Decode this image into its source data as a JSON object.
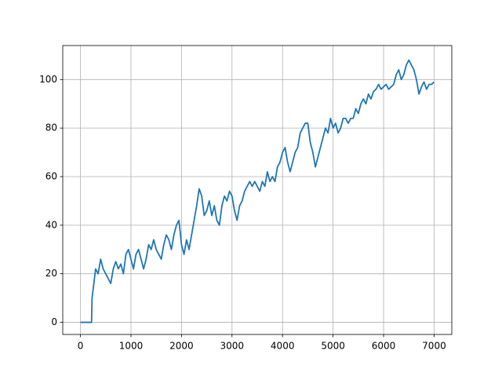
{
  "chart_data": {
    "type": "line",
    "x": [
      0,
      100,
      200,
      220,
      230,
      260,
      300,
      350,
      400,
      450,
      500,
      550,
      600,
      650,
      700,
      750,
      800,
      850,
      900,
      950,
      1000,
      1050,
      1100,
      1150,
      1200,
      1250,
      1300,
      1350,
      1400,
      1450,
      1500,
      1550,
      1600,
      1650,
      1700,
      1750,
      1800,
      1850,
      1900,
      1950,
      2000,
      2050,
      2100,
      2150,
      2200,
      2250,
      2300,
      2350,
      2400,
      2450,
      2500,
      2550,
      2600,
      2650,
      2700,
      2750,
      2800,
      2850,
      2900,
      2950,
      3000,
      3050,
      3100,
      3150,
      3200,
      3250,
      3300,
      3350,
      3400,
      3450,
      3500,
      3550,
      3600,
      3650,
      3700,
      3750,
      3800,
      3850,
      3900,
      3950,
      4000,
      4050,
      4100,
      4150,
      4200,
      4250,
      4300,
      4350,
      4400,
      4450,
      4500,
      4550,
      4600,
      4650,
      4700,
      4750,
      4800,
      4850,
      4900,
      4950,
      5000,
      5050,
      5100,
      5150,
      5200,
      5250,
      5300,
      5350,
      5400,
      5450,
      5500,
      5550,
      5600,
      5650,
      5700,
      5750,
      5800,
      5850,
      5900,
      5950,
      6000,
      6050,
      6100,
      6150,
      6200,
      6250,
      6300,
      6350,
      6400,
      6450,
      6500,
      6550,
      6600,
      6650,
      6700,
      6750,
      6800,
      6850,
      6900,
      6950,
      6999
    ],
    "series": [
      {
        "color": "#1f77b4",
        "values": [
          0,
          0,
          0,
          0,
          10,
          15,
          22,
          20,
          26,
          22,
          20,
          18,
          16,
          22,
          25,
          22,
          24,
          20,
          28,
          30,
          26,
          22,
          28,
          30,
          26,
          22,
          26,
          32,
          30,
          34,
          30,
          28,
          26,
          32,
          36,
          34,
          30,
          36,
          40,
          42,
          32,
          28,
          34,
          30,
          36,
          42,
          48,
          55,
          52,
          44,
          46,
          50,
          44,
          48,
          42,
          40,
          48,
          52,
          50,
          54,
          52,
          46,
          42,
          48,
          50,
          54,
          56,
          58,
          56,
          58,
          56,
          54,
          58,
          56,
          62,
          58,
          60,
          58,
          64,
          66,
          70,
          72,
          66,
          62,
          66,
          70,
          72,
          78,
          80,
          82,
          82,
          74,
          70,
          64,
          68,
          72,
          76,
          80,
          78,
          84,
          80,
          82,
          78,
          80,
          84,
          84,
          82,
          84,
          84,
          88,
          86,
          90,
          92,
          90,
          94,
          92,
          95,
          96,
          98,
          96,
          97,
          98,
          96,
          97,
          98,
          102,
          104,
          100,
          102,
          106,
          108,
          106,
          104,
          100,
          94,
          97,
          99,
          96,
          98,
          98,
          99
        ]
      }
    ],
    "xlim": [
      -350,
      7350
    ],
    "ylim": [
      -5,
      114
    ],
    "xticks": [
      0,
      1000,
      2000,
      3000,
      4000,
      5000,
      6000,
      7000
    ],
    "yticks": [
      0,
      20,
      40,
      60,
      80,
      100
    ],
    "grid": true
  }
}
